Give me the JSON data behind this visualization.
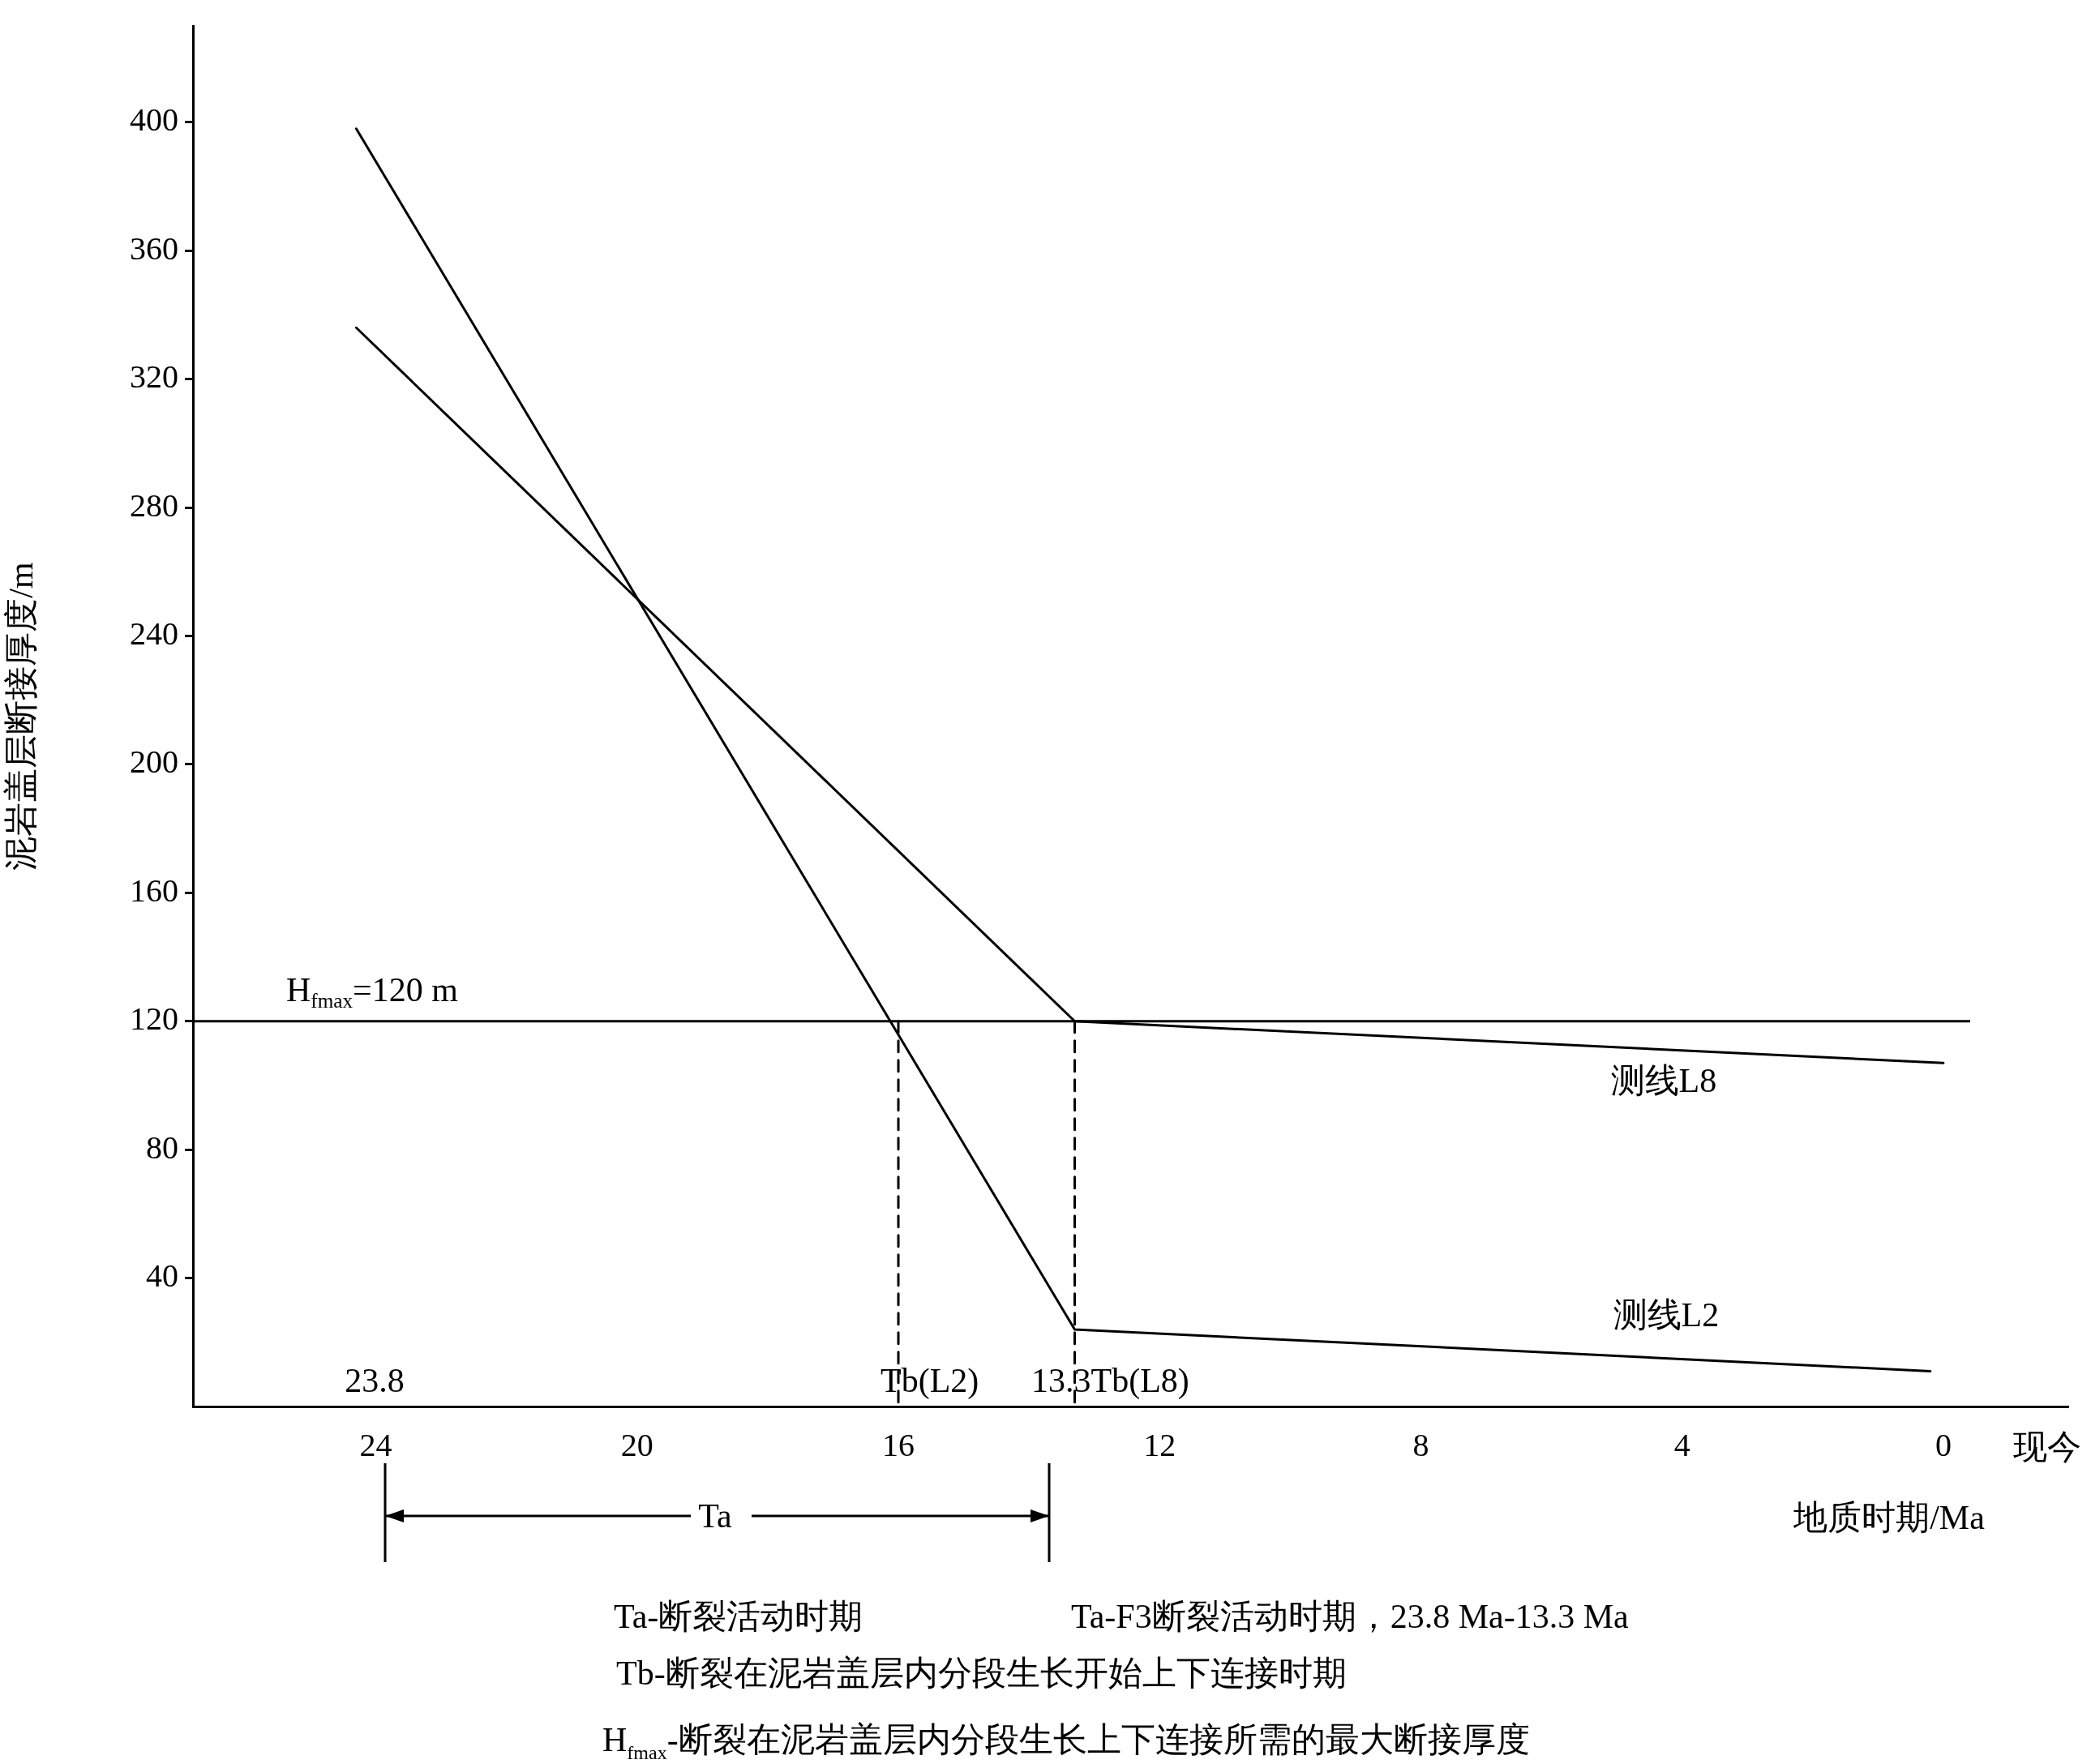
{
  "chart_data": {
    "type": "line",
    "xlabel": "地质时期/Ma",
    "ylabel": "泥岩盖层断接厚度/m",
    "xlim": [
      26.8,
      -1.9
    ],
    "xticks": [
      24,
      20,
      16,
      12,
      8,
      4,
      0
    ],
    "ylim": [
      0,
      430
    ],
    "yticks": [
      40,
      80,
      120,
      160,
      200,
      240,
      280,
      320,
      360,
      400
    ],
    "grid": false,
    "legend": false,
    "line_style": "solid",
    "series": [
      {
        "name": "测线L8",
        "color": "#000000",
        "x": [
          24.3,
          13.3,
          0
        ],
        "values": [
          336,
          120,
          107
        ]
      },
      {
        "name": "测线L2",
        "color": "#000000",
        "x": [
          24.3,
          13.3,
          0.2
        ],
        "values": [
          398,
          24,
          11
        ]
      },
      {
        "color": "#000000",
        "x": [
          16,
          16
        ],
        "values": [
          120,
          0
        ],
        "line_style": "dashed"
      },
      {
        "color": "#000000",
        "x": [
          13.3,
          13.3
        ],
        "values": [
          120,
          0
        ],
        "line_style": "dashed"
      }
    ],
    "ref_lines": [
      {
        "axis": "y",
        "value": 120,
        "label": "H$_{fmax}$=120 m"
      }
    ],
    "annotations": [
      "23.8",
      "Tb(L2)",
      "13.3Tb(L8)",
      "Ta",
      "现今",
      "Ta-断裂活动时期",
      "Ta-F3断裂活动时期，23.8 Ma-13.3 Ma",
      "Tb-断裂在泥岩盖层内分段生长开始上下连接时期",
      "H$_{fmax}$-断裂在泥岩盖层内分段生长上下连接所需的最大断接厚度"
    ]
  }
}
